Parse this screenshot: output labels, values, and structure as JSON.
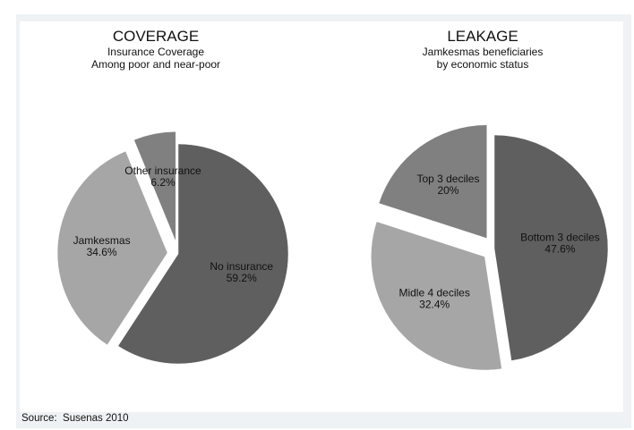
{
  "chart_data": [
    {
      "type": "pie",
      "title": "COVERAGE",
      "subtitle": [
        "Insurance Coverage",
        "Among poor and near-poor"
      ],
      "slices": [
        {
          "label": "No insurance",
          "value": 59.2,
          "value_label": "59.2%",
          "color": "#5f5f5f"
        },
        {
          "label": "Jamkesmas",
          "value": 34.6,
          "value_label": "34.6%",
          "color": "#a6a6a6"
        },
        {
          "label": "Other insurance",
          "value": 6.2,
          "value_label": "6.2%",
          "color": "#808080"
        }
      ],
      "exploded": true
    },
    {
      "type": "pie",
      "title": "LEAKAGE",
      "subtitle": [
        "Jamkesmas beneficiaries",
        "by economic status"
      ],
      "slices": [
        {
          "label": "Bottom 3 deciles",
          "value": 47.6,
          "value_label": "47.6%",
          "color": "#5f5f5f"
        },
        {
          "label": "Midle 4 deciles",
          "value": 32.4,
          "value_label": "32.4%",
          "color": "#a6a6a6"
        },
        {
          "label": "Top 3 deciles",
          "value": 20,
          "value_label": "20%",
          "color": "#808080"
        }
      ],
      "exploded": true
    }
  ],
  "source": "Source:  Susenas 2010"
}
